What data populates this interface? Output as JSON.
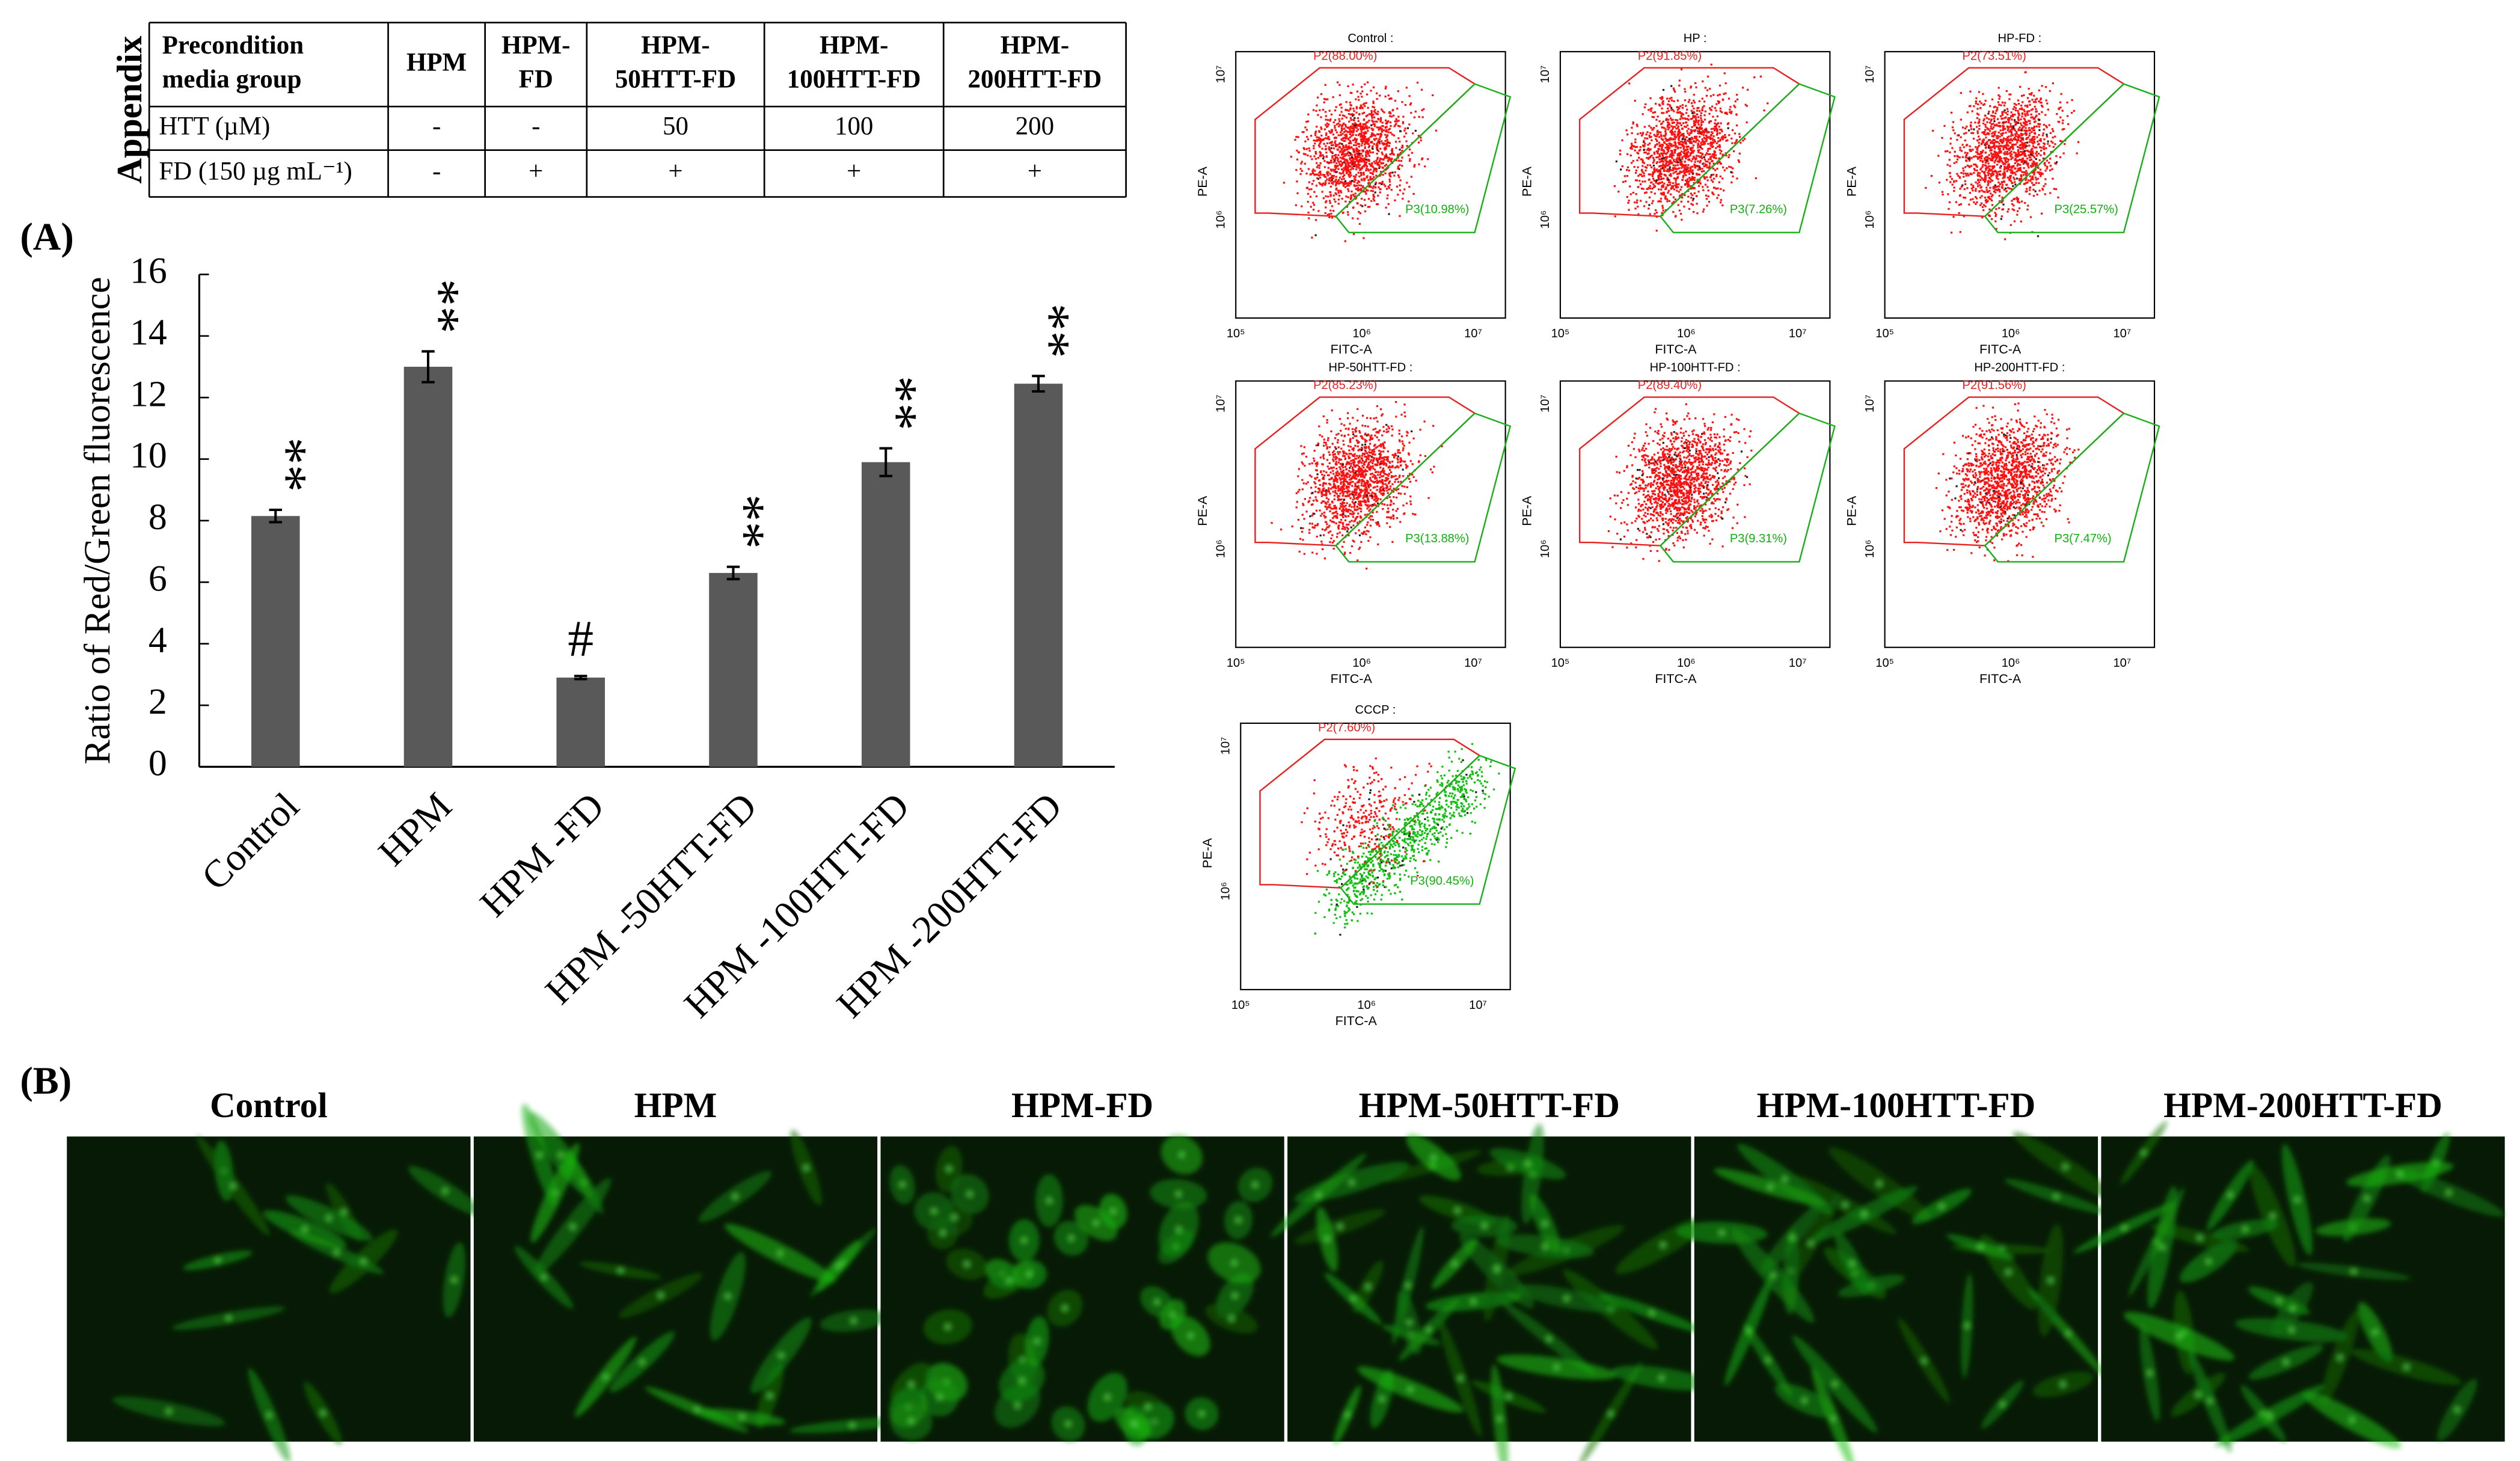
{
  "table": {
    "side_label": "Appendix",
    "header": [
      [
        "Precondition",
        "media group"
      ],
      [
        "HPM"
      ],
      [
        "HPM-",
        "FD"
      ],
      [
        "HPM-",
        "50HTT-FD"
      ],
      [
        "HPM-",
        "100HTT-FD"
      ],
      [
        "HPM-",
        "200HTT-FD"
      ]
    ],
    "rows": [
      [
        "HTT (µM)",
        "-",
        "-",
        "50",
        "100",
        "200"
      ],
      [
        "FD (150 µg mL⁻¹)",
        "-",
        "+",
        "+",
        "+",
        "+"
      ]
    ]
  },
  "chart_data": {
    "type": "bar",
    "panel_label": "(A)",
    "ylabel": "Ratio of Red/Green fluorescence",
    "categories": [
      "Control",
      "HPM",
      "HPM -FD",
      "HPM -50HTT-FD",
      "HPM -100HTT-FD",
      "HPM -200HTT-FD"
    ],
    "values": [
      8.15,
      13.0,
      2.9,
      6.3,
      9.9,
      12.45
    ],
    "errors": [
      0.2,
      0.5,
      0.05,
      0.2,
      0.45,
      0.25
    ],
    "annotations": [
      "**",
      "**",
      "#",
      "**",
      "**",
      "**"
    ],
    "color": "#595959",
    "ylim": [
      0,
      16
    ],
    "yticks": [
      0,
      2,
      4,
      6,
      8,
      10,
      12,
      14,
      16
    ]
  },
  "flow": {
    "x_label": "FITC-A",
    "y_label": "PE-A",
    "x_ticks": [
      "10⁵",
      "10⁶",
      "10⁷"
    ],
    "y_ticks": [
      "10⁶",
      "10⁷"
    ],
    "panels": [
      {
        "title": "Control :",
        "p2": "P2(88.00%)",
        "p3": "P3(10.98%)"
      },
      {
        "title": "HP :",
        "p2": "P2(91.85%)",
        "p3": "P3(7.26%)"
      },
      {
        "title": "HP-FD :",
        "p2": "P2(73.51%)",
        "p3": "P3(25.57%)"
      },
      {
        "title": "HP-50HTT-FD :",
        "p2": "P2(85.23%)",
        "p3": "P3(13.88%)"
      },
      {
        "title": "HP-100HTT-FD :",
        "p2": "P2(89.40%)",
        "p3": "P3(9.31%)"
      },
      {
        "title": "HP-200HTT-FD :",
        "p2": "P2(91.56%)",
        "p3": "P3(7.47%)"
      },
      {
        "title": "CCCP :",
        "p2": "P2(7.60%)",
        "p3": "P3(90.45%)"
      }
    ]
  },
  "images": {
    "panel_label": "(B)",
    "labels": [
      "Control",
      "HPM",
      "HPM-FD",
      "HPM-50HTT-FD",
      "HPM-100HTT-FD",
      "HPM-200HTT-FD"
    ]
  }
}
